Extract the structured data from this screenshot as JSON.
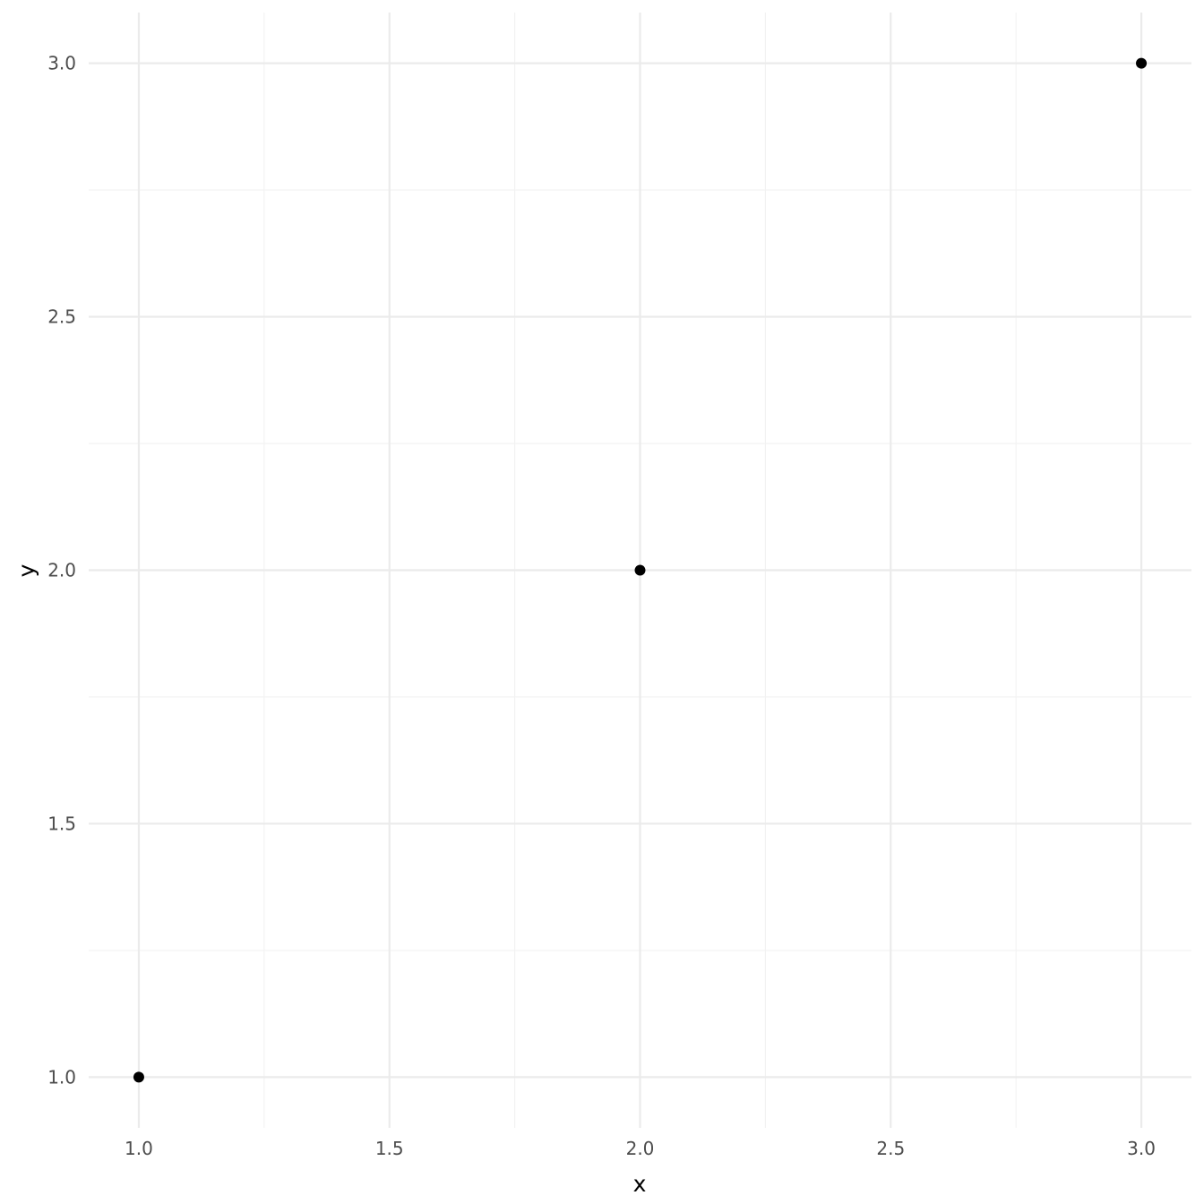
{
  "chart_data": {
    "type": "scatter",
    "title": "",
    "xlabel": "x",
    "ylabel": "y",
    "xlim": [
      0.9,
      3.1
    ],
    "ylim": [
      0.9,
      3.1
    ],
    "x_ticks": [
      1.0,
      1.5,
      2.0,
      2.5,
      3.0
    ],
    "x_tick_labels": [
      "1.0",
      "1.5",
      "2.0",
      "2.5",
      "3.0"
    ],
    "y_ticks": [
      1.0,
      1.5,
      2.0,
      2.5,
      3.0
    ],
    "y_tick_labels": [
      "1.0",
      "1.5",
      "2.0",
      "2.5",
      "3.0"
    ],
    "x_minor": [
      1.25,
      1.75,
      2.25,
      2.75
    ],
    "y_minor": [
      1.25,
      1.75,
      2.25,
      2.75
    ],
    "grid": true,
    "points": [
      {
        "x": 1,
        "y": 1
      },
      {
        "x": 2,
        "y": 2
      },
      {
        "x": 3,
        "y": 3
      }
    ],
    "colors": {
      "point": "#000000",
      "grid_major": "#ebebeb",
      "grid_minor": "#f2f2f2",
      "tick_text": "#4d4d4d"
    }
  }
}
